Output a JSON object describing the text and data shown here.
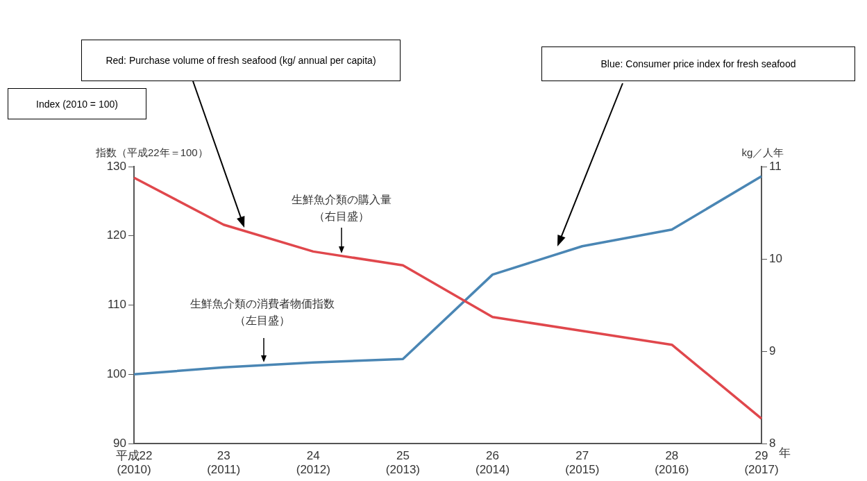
{
  "chart_data": {
    "type": "line",
    "categories": [
      "平成22\n(2010)",
      "23\n(2011)",
      "24\n(2012)",
      "25\n(2013)",
      "26\n(2014)",
      "27\n(2015)",
      "28\n(2016)",
      "29\n(2017)"
    ],
    "xlabel": "年",
    "ylabel": "指数（平成22年＝100）",
    "y2label": "kg／人年",
    "series": [
      {
        "color": "#e0474c",
        "axis": "y2",
        "values": [
          10.88,
          10.37,
          10.08,
          9.93,
          9.37,
          9.22,
          9.07,
          8.27
        ]
      },
      {
        "color": "#4a86b4",
        "values": [
          100,
          101.0,
          101.7,
          102.2,
          114.4,
          118.5,
          120.9,
          128.6
        ]
      }
    ],
    "ylim": [
      90,
      130
    ],
    "yticks": [
      90,
      100,
      110,
      120,
      130
    ],
    "y2lim": [
      8,
      11
    ],
    "y2ticks": [
      8,
      9,
      10,
      11
    ],
    "grid": false,
    "legend": false,
    "marker": "none",
    "line_style": "solid",
    "annotations": [
      "Red: Purchase volume of fresh seafood (kg/ annual per capita)",
      "Blue: Consumer price index for fresh seafood",
      "Index (2010 = 100)",
      "生鮮魚介類の購入量",
      "（右目盛）",
      "生鮮魚介類の消費者物価指数",
      "（左目盛）"
    ]
  }
}
